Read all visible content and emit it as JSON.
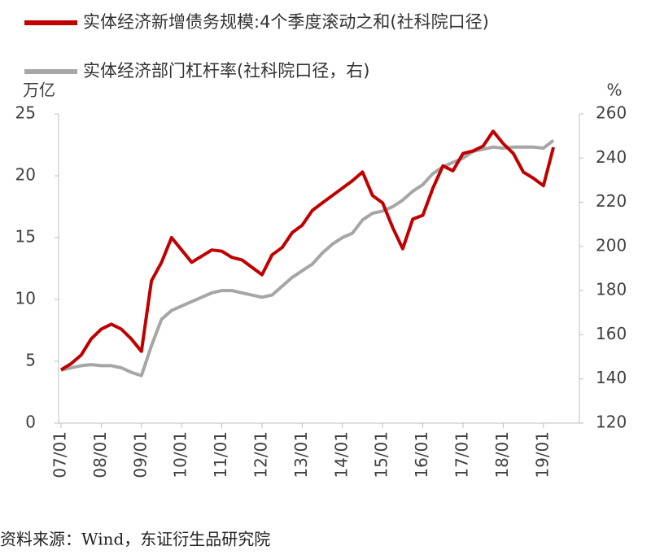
{
  "chart_data": {
    "type": "line",
    "left_unit": "万亿",
    "right_unit": "%",
    "source": "资料来源：Wind，东证衍生品研究院",
    "categories": [
      "07/01",
      null,
      null,
      null,
      "08/01",
      null,
      null,
      null,
      "09/01",
      null,
      null,
      null,
      "10/01",
      null,
      null,
      null,
      "11/01",
      null,
      null,
      null,
      "12/01",
      null,
      null,
      null,
      "13/01",
      null,
      null,
      null,
      "14/01",
      null,
      null,
      null,
      "15/01",
      null,
      null,
      null,
      "16/01",
      null,
      null,
      null,
      "17/01",
      null,
      null,
      null,
      "18/01",
      null,
      null,
      null,
      "19/01",
      null
    ],
    "series": [
      {
        "name": "实体经济新增债务规模:4个季度滚动之和(社科院口径)",
        "color": "#c00000",
        "axis": "y",
        "values": [
          4.3,
          4.8,
          5.5,
          6.8,
          7.6,
          8.0,
          7.6,
          6.8,
          5.8,
          11.5,
          13.0,
          15.0,
          14.0,
          13.0,
          13.5,
          14.0,
          13.9,
          13.4,
          13.2,
          12.6,
          12.0,
          13.6,
          14.2,
          15.4,
          16.0,
          17.2,
          17.8,
          18.4,
          19.0,
          19.6,
          20.3,
          18.4,
          17.8,
          15.8,
          14.1,
          16.5,
          16.8,
          19.0,
          20.8,
          20.4,
          21.8,
          22.0,
          22.4,
          23.6,
          22.6,
          21.8,
          20.3,
          19.8,
          19.2,
          22.3
        ]
      },
      {
        "name": "实体经济部门杠杆率(社科院口径，右)",
        "color": "#a6a6a6",
        "axis": "y2",
        "values": [
          144,
          145,
          146,
          146.5,
          146,
          146,
          145,
          143,
          141.5,
          155,
          167,
          171,
          173,
          175,
          177,
          179,
          180,
          180,
          179,
          178,
          177,
          178,
          182,
          186,
          189,
          192,
          197,
          201,
          204,
          206,
          212,
          215,
          216,
          218,
          221,
          225,
          228,
          233,
          236,
          238,
          240,
          243,
          244,
          245,
          244.5,
          245,
          245,
          245,
          244.5,
          248
        ]
      }
    ],
    "ylim": [
      0,
      25
    ],
    "yticks": [
      0,
      5,
      10,
      15,
      20,
      25
    ],
    "y2lim": [
      120,
      260
    ],
    "y2ticks": [
      120,
      140,
      160,
      180,
      200,
      220,
      240,
      260
    ]
  }
}
